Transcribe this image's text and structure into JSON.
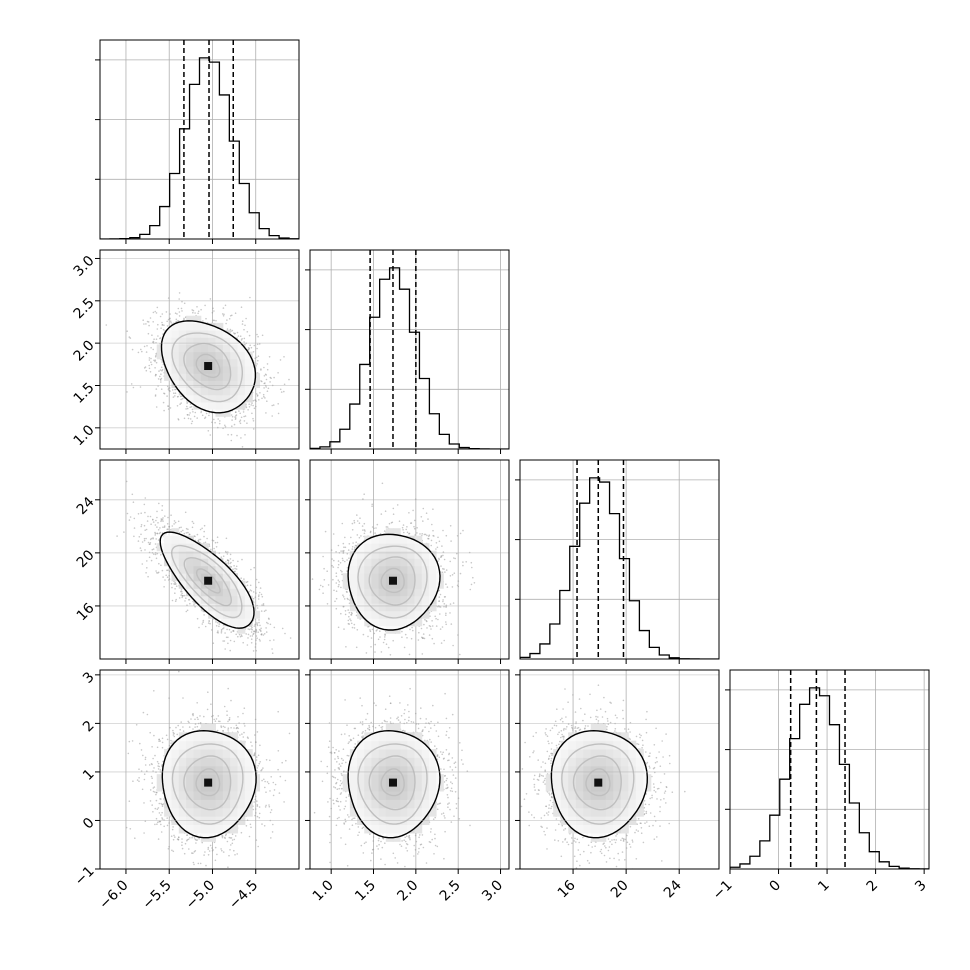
{
  "chart_data": {
    "type": "corner",
    "parameters": [
      {
        "range": [
          -6.3,
          -4.0
        ],
        "ticks": [
          -6.0,
          -5.5,
          -5.0,
          -4.5
        ],
        "tick_labels": [
          "−6.0",
          "−5.5",
          "−5.0",
          "−4.5"
        ],
        "mean": -5.05,
        "sigma": 0.27,
        "quantiles": [
          -5.33,
          -5.04,
          -4.76
        ]
      },
      {
        "range": [
          0.75,
          3.1
        ],
        "ticks": [
          1.0,
          1.5,
          2.0,
          2.5,
          3.0
        ],
        "tick_labels": [
          "1.0",
          "1.5",
          "2.0",
          "2.5",
          "3.0"
        ],
        "mean": 1.73,
        "sigma": 0.27,
        "quantiles": [
          1.46,
          1.73,
          2.0
        ]
      },
      {
        "range": [
          12.0,
          27.0
        ],
        "ticks": [
          16,
          20,
          24
        ],
        "tick_labels": [
          "16",
          "20",
          "24"
        ],
        "mean": 17.9,
        "sigma": 1.8,
        "quantiles": [
          16.3,
          17.9,
          19.8
        ]
      },
      {
        "range": [
          -1.0,
          3.1
        ],
        "ticks": [
          -1,
          0,
          1,
          2,
          3
        ],
        "tick_labels": [
          "−1",
          "0",
          "1",
          "2",
          "3"
        ],
        "mean": 0.78,
        "sigma": 0.55,
        "quantiles": [
          0.25,
          0.78,
          1.37
        ]
      }
    ],
    "correlations": [
      [
        1,
        -0.3,
        -0.75,
        0.0
      ],
      [
        -0.3,
        1,
        0.0,
        0.0
      ],
      [
        -0.75,
        0.0,
        1,
        0.0
      ],
      [
        0.0,
        0.0,
        0.0,
        1
      ]
    ],
    "histogram_bins": 20,
    "contour_levels": [
      0.5,
      1.0,
      1.5,
      2.0
    ],
    "grid": true,
    "colors": {
      "line": "#000000",
      "points": "#9a9a9a",
      "grid": "#b0b0b0"
    }
  }
}
